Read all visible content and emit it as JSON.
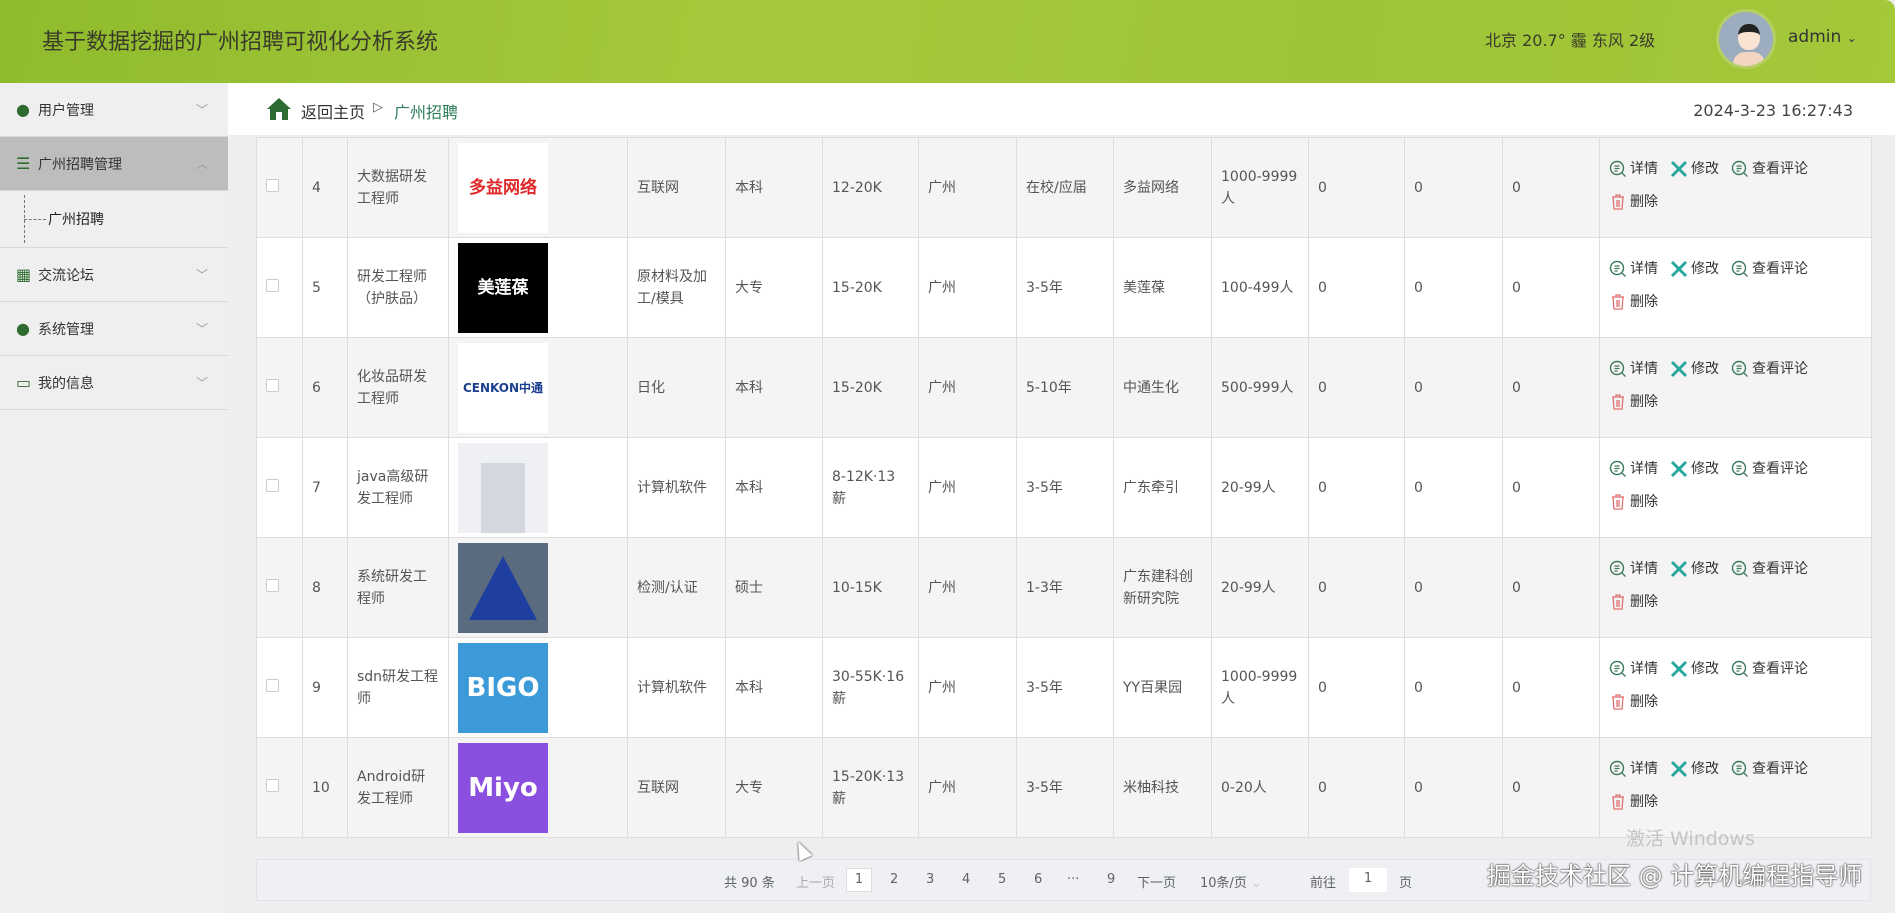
{
  "header": {
    "title": "基于数据挖掘的广州招聘可视化分析系统",
    "weather": "北京  20.7°  霾  东风  2级",
    "user": "admin",
    "user_chevron": "⌄"
  },
  "sidebar": {
    "items": [
      {
        "label": "用户管理",
        "icon": "user-icon",
        "glyph": "👤"
      },
      {
        "label": "广州招聘管理",
        "icon": "list-icon",
        "glyph": "☰"
      },
      {
        "label": "交流论坛",
        "icon": "grid-icon",
        "glyph": "▦"
      },
      {
        "label": "系统管理",
        "icon": "user-icon",
        "glyph": "👤"
      },
      {
        "label": "我的信息",
        "icon": "card-icon",
        "glyph": "▭"
      }
    ],
    "sub_item": "广州招聘"
  },
  "breadcrumb": {
    "home": "返回主页",
    "sep": "▷",
    "current": "广州招聘",
    "datetime": "2024-3-23 16:27:43"
  },
  "actions": {
    "detail": "详情",
    "edit": "修改",
    "comments": "查看评论",
    "delete": "删除"
  },
  "rows": [
    {
      "no": "4",
      "title": "大数据研发工程师",
      "logo": "多益网络",
      "logo_bg": "#ffffff",
      "logo_fg": "#e02a2a",
      "industry": "互联网",
      "edu": "本科",
      "salary": "12-20K",
      "city": "广州",
      "exp": "在校/应届",
      "company": "多益网络",
      "size": "1000-9999人",
      "c1": "0",
      "c2": "0",
      "c3": "0"
    },
    {
      "no": "5",
      "title": "研发工程师（护肤品）",
      "logo": "美莲葆",
      "logo_bg": "#000000",
      "logo_fg": "#ffffff",
      "industry": "原材料及加工/模具",
      "edu": "大专",
      "salary": "15-20K",
      "city": "广州",
      "exp": "3-5年",
      "company": "美莲葆",
      "size": "100-499人",
      "c1": "0",
      "c2": "0",
      "c3": "0"
    },
    {
      "no": "6",
      "title": "化妆品研发工程师",
      "logo": "CENKON中通",
      "logo_bg": "#ffffff",
      "logo_fg": "#1d3f8f",
      "industry": "日化",
      "edu": "本科",
      "salary": "15-20K",
      "city": "广州",
      "exp": "5-10年",
      "company": "中通生化",
      "size": "500-999人",
      "c1": "0",
      "c2": "0",
      "c3": "0"
    },
    {
      "no": "7",
      "title": "java高级研发工程师",
      "logo": "",
      "logo_bg": "#eef0f3",
      "logo_fg": "#c8ccd2",
      "industry": "计算机软件",
      "edu": "本科",
      "salary": "8-12K·13薪",
      "city": "广州",
      "exp": "3-5年",
      "company": "广东牵引",
      "size": "20-99人",
      "c1": "0",
      "c2": "0",
      "c3": "0"
    },
    {
      "no": "8",
      "title": "系统研发工程师",
      "logo": "",
      "logo_bg": "#5a6b80",
      "logo_fg": "#1f3fa0",
      "industry": "检测/认证",
      "edu": "硕士",
      "salary": "10-15K",
      "city": "广州",
      "exp": "1-3年",
      "company": "广东建科创新研究院",
      "size": "20-99人",
      "c1": "0",
      "c2": "0",
      "c3": "0"
    },
    {
      "no": "9",
      "title": "sdn研发工程师",
      "logo": "BIGO",
      "logo_bg": "#3d9ad8",
      "logo_fg": "#ffffff",
      "industry": "计算机软件",
      "edu": "本科",
      "salary": "30-55K·16薪",
      "city": "广州",
      "exp": "3-5年",
      "company": "YY百果园",
      "size": "1000-9999人",
      "c1": "0",
      "c2": "0",
      "c3": "0"
    },
    {
      "no": "10",
      "title": "Android研发工程师",
      "logo": "Miyo",
      "logo_bg": "#8b4fe0",
      "logo_fg": "#ffffff",
      "industry": "互联网",
      "edu": "大专",
      "salary": "15-20K·13薪",
      "city": "广州",
      "exp": "3-5年",
      "company": "米柚科技",
      "size": "0-20人",
      "c1": "0",
      "c2": "0",
      "c3": "0"
    }
  ],
  "pager": {
    "total": "共 90 条",
    "prev": "上一页",
    "pages": [
      "1",
      "2",
      "3",
      "4",
      "5",
      "6",
      "···",
      "9"
    ],
    "current": "1",
    "next": "下一页",
    "page_size": "10条/页",
    "goto": "前往",
    "goto_value": "1",
    "page_unit": "页"
  },
  "watermark": {
    "windows": "激活 Windows",
    "site": "掘金技术社区 @ 计算机编程指导师"
  }
}
